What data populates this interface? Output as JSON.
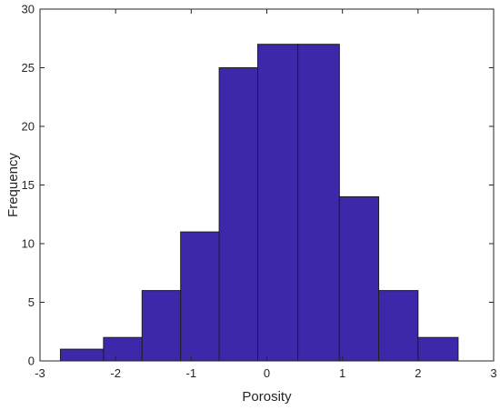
{
  "chart_data": {
    "type": "bar",
    "variant": "histogram",
    "bins": [
      {
        "x0": -2.73,
        "x1": -2.16,
        "count": 1
      },
      {
        "x0": -2.16,
        "x1": -1.65,
        "count": 2
      },
      {
        "x0": -1.65,
        "x1": -1.14,
        "count": 6
      },
      {
        "x0": -1.14,
        "x1": -0.63,
        "count": 11
      },
      {
        "x0": -0.63,
        "x1": -0.12,
        "count": 25
      },
      {
        "x0": -0.12,
        "x1": 0.41,
        "count": 27
      },
      {
        "x0": 0.41,
        "x1": 0.96,
        "count": 27
      },
      {
        "x0": 0.96,
        "x1": 1.48,
        "count": 14
      },
      {
        "x0": 1.48,
        "x1": 2.0,
        "count": 6
      },
      {
        "x0": 2.0,
        "x1": 2.53,
        "count": 2
      }
    ],
    "title": "",
    "xlabel": "Porosity",
    "ylabel": "Frequency",
    "xlim": [
      -3,
      3
    ],
    "ylim": [
      0,
      30
    ],
    "xticks": [
      -3,
      -2,
      -1,
      0,
      1,
      2,
      3
    ],
    "yticks": [
      0,
      5,
      10,
      15,
      20,
      25,
      30
    ],
    "xtick_labels": [
      "-3",
      "-2",
      "-1",
      "0",
      "1",
      "2",
      "3"
    ],
    "ytick_labels": [
      "0",
      "5",
      "10",
      "15",
      "20",
      "25",
      "30"
    ],
    "grid": false,
    "box": true,
    "bar_color": "#3c28a8",
    "edge_color": "#1f1f1f"
  }
}
